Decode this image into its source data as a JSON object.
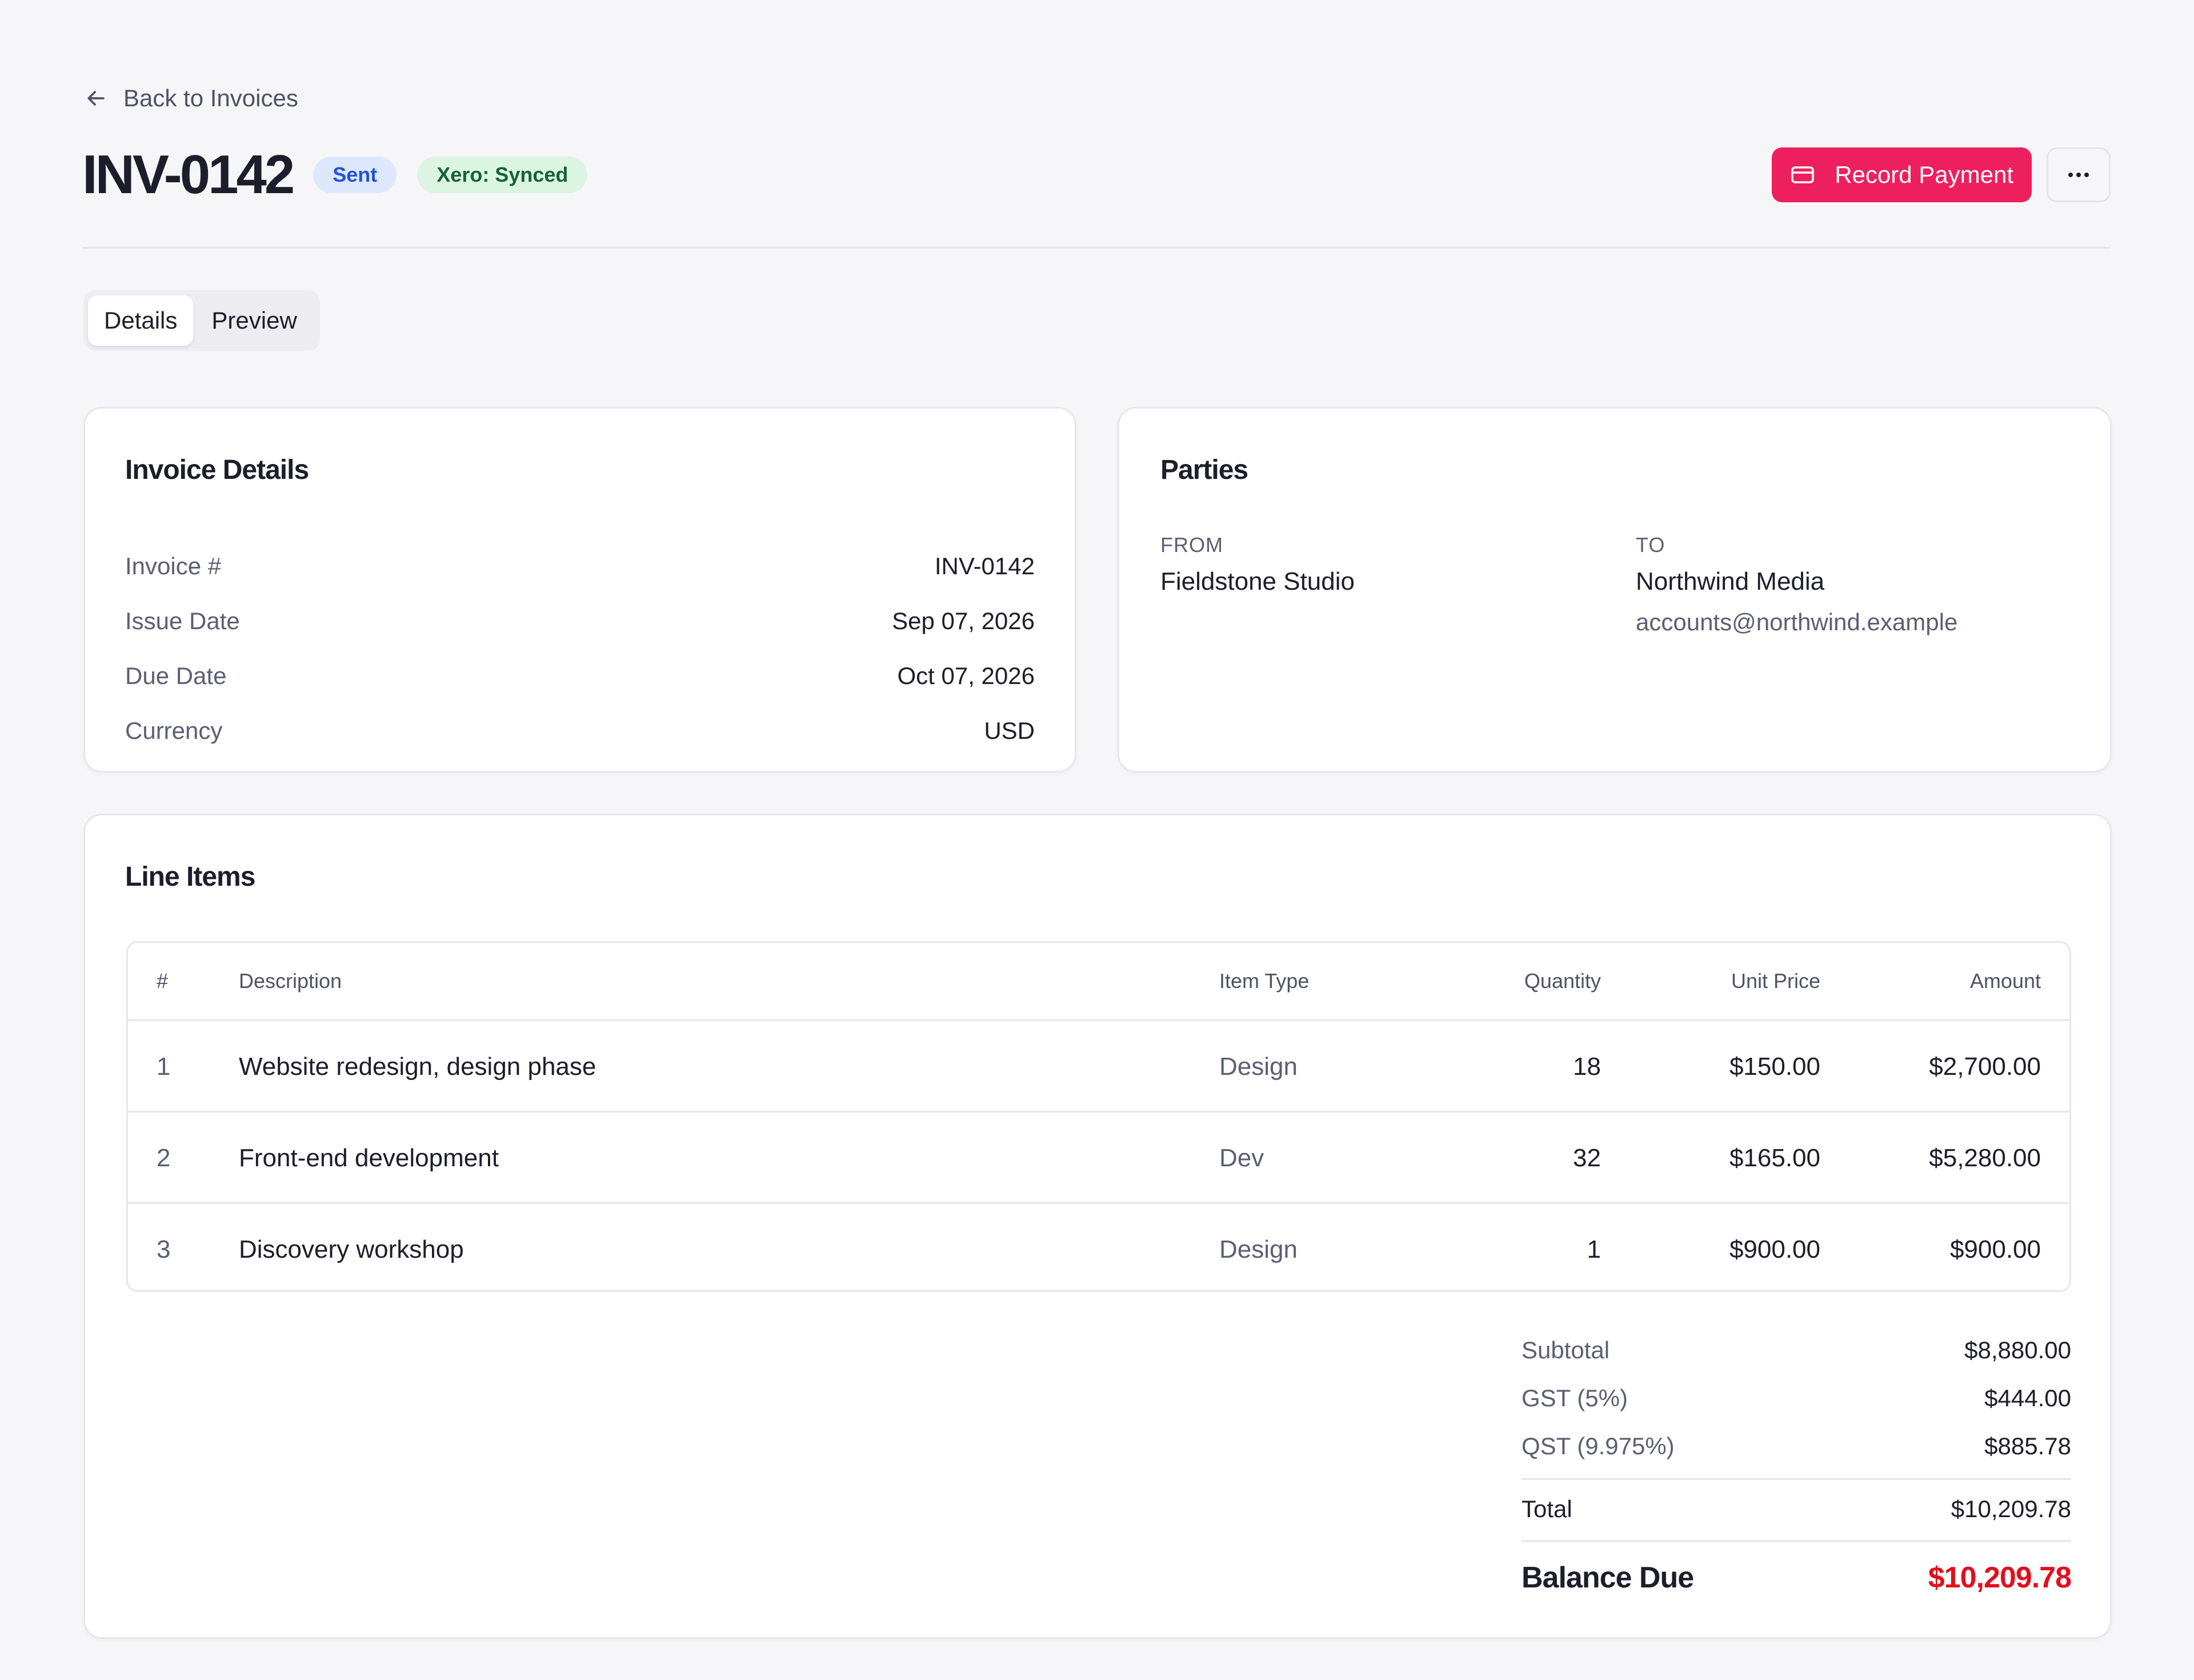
{
  "nav": {
    "back_label": "Back to Invoices"
  },
  "header": {
    "title": "INV-0142",
    "status_badge": "Sent",
    "sync_badge": "Xero: Synced",
    "record_payment_label": "Record Payment"
  },
  "tabs": [
    {
      "label": "Details"
    },
    {
      "label": "Preview"
    }
  ],
  "invoice_details": {
    "title": "Invoice Details",
    "rows": [
      {
        "label": "Invoice #",
        "value": "INV-0142"
      },
      {
        "label": "Issue Date",
        "value": "Sep 07, 2026"
      },
      {
        "label": "Due Date",
        "value": "Oct 07, 2026"
      },
      {
        "label": "Currency",
        "value": "USD"
      }
    ]
  },
  "parties": {
    "title": "Parties",
    "from_label": "FROM",
    "from_name": "Fieldstone Studio",
    "to_label": "TO",
    "to_name": "Northwind Media",
    "to_email": "accounts@northwind.example"
  },
  "line_items": {
    "title": "Line Items",
    "columns": [
      "#",
      "Description",
      "Item Type",
      "Quantity",
      "Unit Price",
      "Amount"
    ],
    "rows": [
      {
        "num": "1",
        "description": "Website redesign, design phase",
        "type": "Design",
        "quantity": "18",
        "unit_price": "$150.00",
        "amount": "$2,700.00"
      },
      {
        "num": "2",
        "description": "Front-end development",
        "type": "Dev",
        "quantity": "32",
        "unit_price": "$165.00",
        "amount": "$5,280.00"
      },
      {
        "num": "3",
        "description": "Discovery workshop",
        "type": "Design",
        "quantity": "1",
        "unit_price": "$900.00",
        "amount": "$900.00"
      }
    ]
  },
  "totals": {
    "subtotal_label": "Subtotal",
    "subtotal": "$8,880.00",
    "gst_label": "GST (5%)",
    "gst": "$444.00",
    "qst_label": "QST (9.975%)",
    "qst": "$885.78",
    "total_label": "Total",
    "total": "$10,209.78",
    "balance_label": "Balance Due",
    "balance": "$10,209.78"
  },
  "colors": {
    "accent": "#ee1f5f",
    "balance": "#e0101e",
    "sent_badge": "#2453d6",
    "sync_badge": "#17613a"
  },
  "icons": {
    "back": "arrow-left-icon",
    "payment": "credit-card-icon",
    "more": "more-horizontal-icon"
  }
}
